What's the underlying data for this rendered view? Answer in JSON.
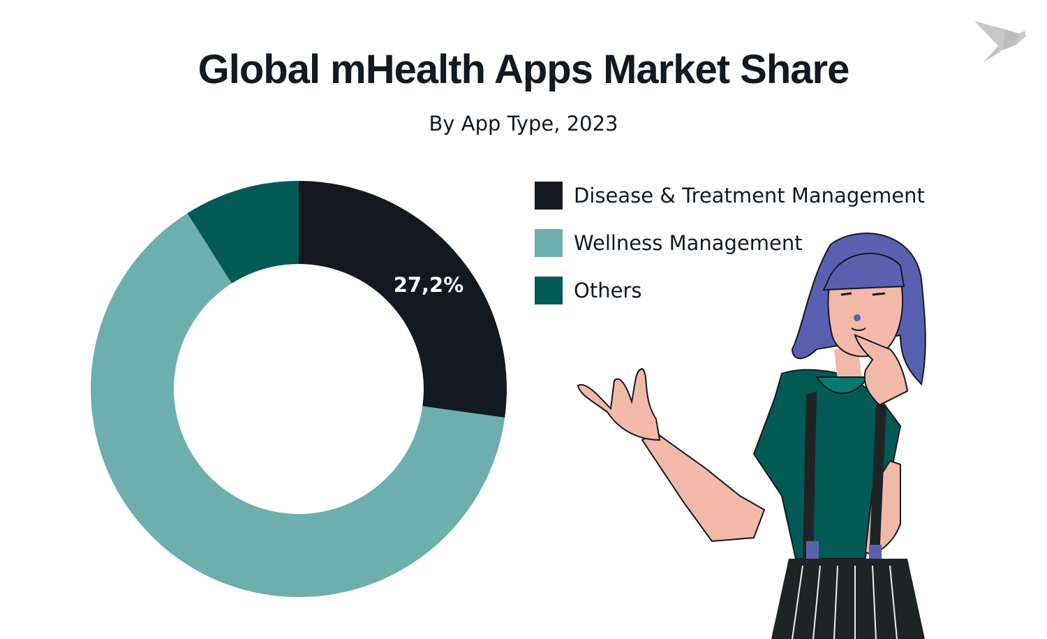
{
  "chart_data": {
    "type": "pie",
    "donut": true,
    "title": "Global mHealth Apps Market Share",
    "subtitle": "By App Type, 2023",
    "unit": "%",
    "categories": [
      "Disease & Treatment Management",
      "Wellness Management",
      "Others"
    ],
    "values": [
      27.2,
      63.8,
      9.0
    ],
    "colors": [
      "#121920",
      "#6cafac",
      "#025a55"
    ],
    "data_labels": [
      {
        "category": "Disease & Treatment Management",
        "text": "27,2%"
      }
    ],
    "legend_placement": "right"
  },
  "icons": {
    "logo": "origami-bird-icon",
    "illustration": "thinking-woman-illustration"
  }
}
